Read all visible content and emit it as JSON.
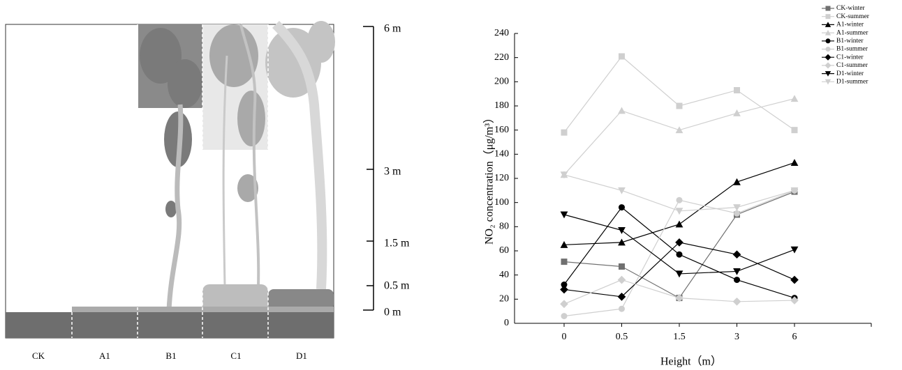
{
  "illustration": {
    "plots": [
      "CK",
      "A1",
      "B1",
      "C1",
      "D1"
    ],
    "height_labels": [
      "6 m",
      "3 m",
      "1.5 m",
      "0.5 m",
      "0 m"
    ]
  },
  "chart_data": {
    "type": "line",
    "x_label": "Height（m）",
    "y_label": "NO₂ concentration（μg/m³）",
    "categories": [
      "0",
      "0.5",
      "1.5",
      "3",
      "6"
    ],
    "ylim": [
      0,
      240
    ],
    "yticks": [
      0,
      20,
      40,
      60,
      80,
      100,
      120,
      140,
      160,
      180,
      200,
      220,
      240
    ],
    "legend": "top-right",
    "series": [
      {
        "name": "CK-winter",
        "color": "#707070",
        "marker": "square",
        "values": [
          51,
          47,
          21,
          90,
          109
        ]
      },
      {
        "name": "CK-summer",
        "color": "#cfcfcf",
        "marker": "square",
        "values": [
          158,
          221,
          180,
          193,
          160
        ]
      },
      {
        "name": "A1-winter",
        "color": "#000000",
        "marker": "triangle",
        "values": [
          65,
          67,
          82,
          117,
          133
        ]
      },
      {
        "name": "A1-summer",
        "color": "#cfcfcf",
        "marker": "triangle",
        "values": [
          123,
          176,
          160,
          174,
          186
        ]
      },
      {
        "name": "B1-winter",
        "color": "#000000",
        "marker": "circle",
        "values": [
          32,
          96,
          57,
          36,
          21
        ]
      },
      {
        "name": "B1-summer",
        "color": "#cfcfcf",
        "marker": "circle",
        "values": [
          6,
          12,
          102,
          91,
          110
        ]
      },
      {
        "name": "C1-winter",
        "color": "#000000",
        "marker": "diamond",
        "values": [
          28,
          22,
          67,
          57,
          36
        ]
      },
      {
        "name": "C1-summer",
        "color": "#cfcfcf",
        "marker": "diamond",
        "values": [
          16,
          36,
          21,
          18,
          19
        ]
      },
      {
        "name": "D1-winter",
        "color": "#000000",
        "marker": "triangle-down",
        "values": [
          90,
          77,
          41,
          43,
          61
        ]
      },
      {
        "name": "D1-summer",
        "color": "#cfcfcf",
        "marker": "triangle-down",
        "values": [
          123,
          110,
          93,
          96,
          110
        ]
      }
    ]
  }
}
